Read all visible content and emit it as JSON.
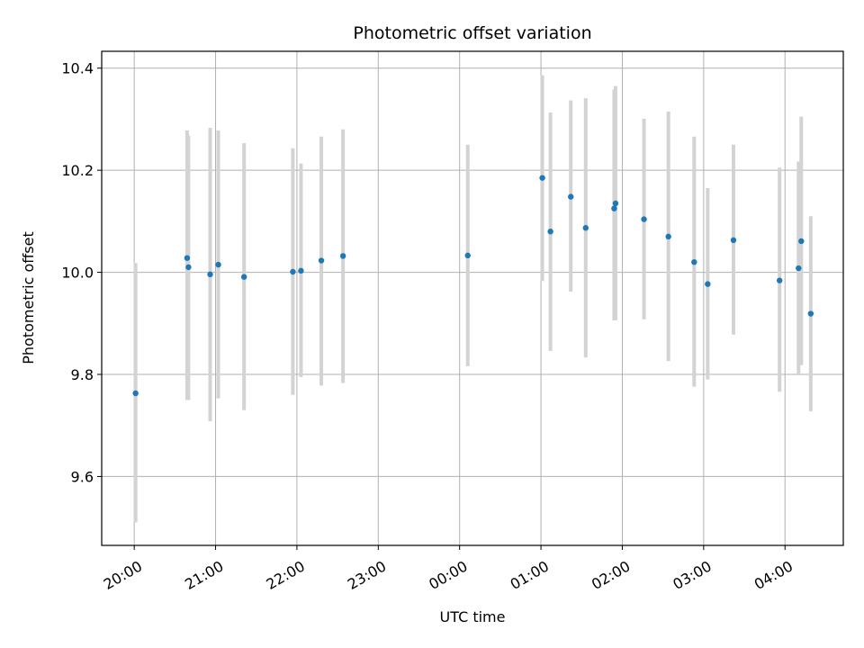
{
  "chart_data": {
    "type": "scatter",
    "title": "Photometric offset variation",
    "xlabel": "UTC time",
    "ylabel": "Photometric offset",
    "x_ticks": [
      "20:00",
      "21:00",
      "22:00",
      "23:00",
      "00:00",
      "01:00",
      "02:00",
      "03:00",
      "04:00"
    ],
    "y_ticks": [
      "9.6",
      "9.8",
      "10.0",
      "10.2",
      "10.4"
    ],
    "xlim": [
      "19:36",
      "04:43"
    ],
    "ylim": [
      9.465,
      10.433
    ],
    "grid": true,
    "colors": {
      "points": "#1f77b4",
      "errorbars": "#d3d3d3",
      "grid": "#b0b0b0"
    },
    "points": [
      {
        "x": "20:01",
        "y": 9.763,
        "low": 9.51,
        "high": 10.018
      },
      {
        "x": "20:39",
        "y": 10.028,
        "low": 9.75,
        "high": 10.278
      },
      {
        "x": "20:40",
        "y": 10.01,
        "low": 9.75,
        "high": 10.268
      },
      {
        "x": "20:56",
        "y": 9.996,
        "low": 9.708,
        "high": 10.283
      },
      {
        "x": "21:02",
        "y": 10.015,
        "low": 9.753,
        "high": 10.278
      },
      {
        "x": "21:21",
        "y": 9.991,
        "low": 9.73,
        "high": 10.253
      },
      {
        "x": "21:57",
        "y": 10.001,
        "low": 9.76,
        "high": 10.243
      },
      {
        "x": "22:03",
        "y": 10.003,
        "low": 9.795,
        "high": 10.213
      },
      {
        "x": "22:18",
        "y": 10.023,
        "low": 9.778,
        "high": 10.266
      },
      {
        "x": "22:34",
        "y": 10.032,
        "low": 9.783,
        "high": 10.28
      },
      {
        "x": "00:06",
        "y": 10.033,
        "low": 9.816,
        "high": 10.25
      },
      {
        "x": "01:01",
        "y": 10.185,
        "low": 9.983,
        "high": 10.386
      },
      {
        "x": "01:07",
        "y": 10.08,
        "low": 9.846,
        "high": 10.313
      },
      {
        "x": "01:22",
        "y": 10.148,
        "low": 9.962,
        "high": 10.337
      },
      {
        "x": "01:33",
        "y": 10.087,
        "low": 9.833,
        "high": 10.341
      },
      {
        "x": "01:54",
        "y": 10.125,
        "low": 9.906,
        "high": 10.358
      },
      {
        "x": "01:55",
        "y": 10.135,
        "low": 9.906,
        "high": 10.365
      },
      {
        "x": "02:16",
        "y": 10.104,
        "low": 9.908,
        "high": 10.301
      },
      {
        "x": "02:34",
        "y": 10.07,
        "low": 9.826,
        "high": 10.315
      },
      {
        "x": "02:53",
        "y": 10.02,
        "low": 9.776,
        "high": 10.266
      },
      {
        "x": "03:03",
        "y": 9.977,
        "low": 9.79,
        "high": 10.165
      },
      {
        "x": "03:22",
        "y": 10.063,
        "low": 9.878,
        "high": 10.25
      },
      {
        "x": "03:56",
        "y": 9.984,
        "low": 9.766,
        "high": 10.205
      },
      {
        "x": "04:10",
        "y": 10.008,
        "low": 9.8,
        "high": 10.217
      },
      {
        "x": "04:12",
        "y": 10.061,
        "low": 9.818,
        "high": 10.305
      },
      {
        "x": "04:19",
        "y": 9.919,
        "low": 9.728,
        "high": 10.11
      }
    ]
  }
}
